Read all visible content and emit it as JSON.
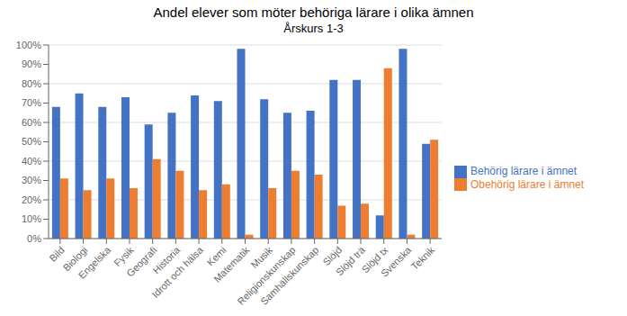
{
  "chart_data": {
    "type": "bar",
    "title": "Andel elever som möter behöriga lärare i olika ämnen",
    "subtitle": "Årskurs 1-3",
    "categories": [
      "Bild",
      "Biologi",
      "Engelska",
      "Fysik",
      "Geografi",
      "Historia",
      "Idrott och hälsa",
      "Kemi",
      "Matematik",
      "Musik",
      "Religionskunskap",
      "Samhällskunskap",
      "Slöjd",
      "Slöjd trä",
      "Slöjd tx",
      "Svenska",
      "Teknik"
    ],
    "series": [
      {
        "name": "Behörig lärare i ämnet",
        "color": "#4472C4",
        "values": [
          68,
          75,
          68,
          73,
          59,
          65,
          74,
          71,
          98,
          72,
          65,
          66,
          82,
          82,
          12,
          98,
          49
        ]
      },
      {
        "name": "Obehörig lärare i ämnet",
        "color": "#ED7D31",
        "values": [
          31,
          25,
          31,
          26,
          41,
          35,
          25,
          28,
          2,
          26,
          35,
          33,
          17,
          18,
          88,
          2,
          51
        ]
      }
    ],
    "ylim": [
      0,
      100
    ],
    "yticks": [
      {
        "value": 0,
        "label": "0%"
      },
      {
        "value": 10,
        "label": "10%"
      },
      {
        "value": 20,
        "label": "20%"
      },
      {
        "value": 30,
        "label": "30%"
      },
      {
        "value": 40,
        "label": "40%"
      },
      {
        "value": 50,
        "label": "50%"
      },
      {
        "value": 60,
        "label": "60%"
      },
      {
        "value": 70,
        "label": "70%"
      },
      {
        "value": 80,
        "label": "80%"
      },
      {
        "value": 90,
        "label": "90%"
      },
      {
        "value": 100,
        "label": "100%"
      }
    ],
    "grid": true,
    "legend": "right"
  }
}
